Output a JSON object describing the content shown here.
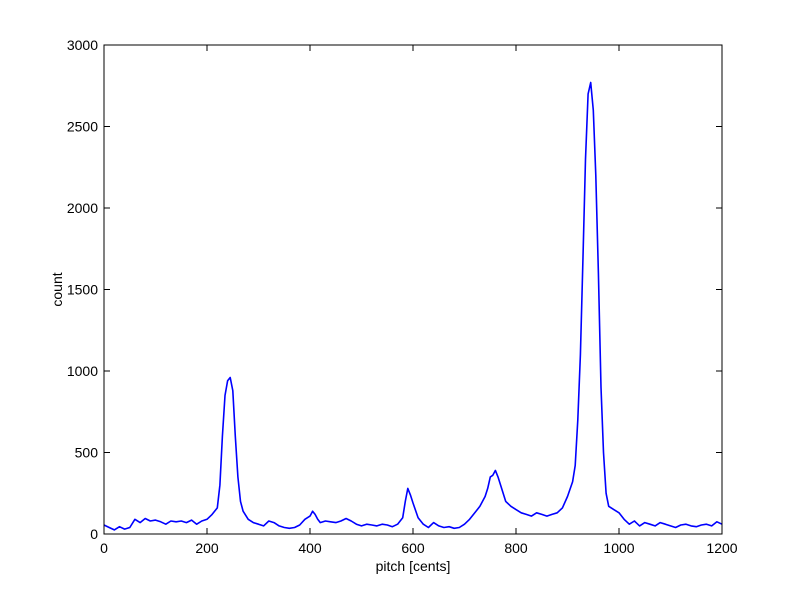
{
  "chart_data": {
    "type": "line",
    "title": "",
    "xlabel": "pitch [cents]",
    "ylabel": "count",
    "xlim": [
      0,
      1200
    ],
    "ylim": [
      0,
      3000
    ],
    "xticks": [
      0,
      200,
      400,
      600,
      800,
      1000,
      1200
    ],
    "yticks": [
      0,
      500,
      1000,
      1500,
      2000,
      2500,
      3000
    ],
    "grid": false,
    "line_color": "#0000ff",
    "series": [
      {
        "x": [
          0,
          10,
          20,
          30,
          40,
          50,
          60,
          70,
          80,
          90,
          100,
          110,
          120,
          130,
          140,
          150,
          160,
          170,
          180,
          190,
          200,
          210,
          220,
          225,
          230,
          235,
          240,
          245,
          250,
          255,
          260,
          265,
          270,
          280,
          290,
          300,
          310,
          320,
          330,
          340,
          350,
          360,
          370,
          380,
          390,
          400,
          405,
          410,
          415,
          420,
          430,
          440,
          450,
          460,
          470,
          480,
          490,
          500,
          510,
          520,
          530,
          540,
          550,
          560,
          570,
          580,
          585,
          590,
          595,
          600,
          610,
          620,
          630,
          640,
          650,
          660,
          670,
          680,
          690,
          700,
          710,
          720,
          730,
          740,
          745,
          750,
          755,
          760,
          765,
          770,
          780,
          790,
          800,
          810,
          820,
          830,
          840,
          850,
          860,
          870,
          880,
          890,
          900,
          910,
          915,
          920,
          925,
          930,
          935,
          940,
          945,
          950,
          955,
          960,
          965,
          970,
          975,
          980,
          990,
          1000,
          1010,
          1020,
          1030,
          1040,
          1050,
          1060,
          1070,
          1080,
          1090,
          1100,
          1110,
          1120,
          1130,
          1140,
          1150,
          1160,
          1170,
          1180,
          1190,
          1200
        ],
        "y": [
          55,
          40,
          25,
          45,
          30,
          40,
          90,
          70,
          95,
          80,
          85,
          75,
          60,
          80,
          75,
          80,
          70,
          85,
          60,
          80,
          90,
          120,
          160,
          300,
          600,
          850,
          940,
          960,
          880,
          600,
          350,
          200,
          140,
          90,
          70,
          60,
          50,
          80,
          70,
          50,
          40,
          35,
          40,
          55,
          90,
          110,
          140,
          120,
          90,
          70,
          80,
          75,
          70,
          80,
          95,
          80,
          60,
          50,
          60,
          55,
          50,
          60,
          55,
          45,
          60,
          100,
          200,
          280,
          240,
          190,
          100,
          60,
          40,
          70,
          50,
          40,
          45,
          35,
          40,
          60,
          90,
          130,
          170,
          230,
          280,
          350,
          360,
          390,
          350,
          300,
          200,
          170,
          150,
          130,
          120,
          110,
          130,
          120,
          110,
          120,
          130,
          160,
          230,
          320,
          420,
          700,
          1100,
          1700,
          2300,
          2700,
          2770,
          2600,
          2200,
          1600,
          900,
          500,
          250,
          170,
          150,
          130,
          90,
          60,
          80,
          50,
          70,
          60,
          50,
          70,
          60,
          50,
          40,
          55,
          60,
          50,
          45,
          55,
          60,
          50,
          75,
          60
        ]
      }
    ]
  }
}
